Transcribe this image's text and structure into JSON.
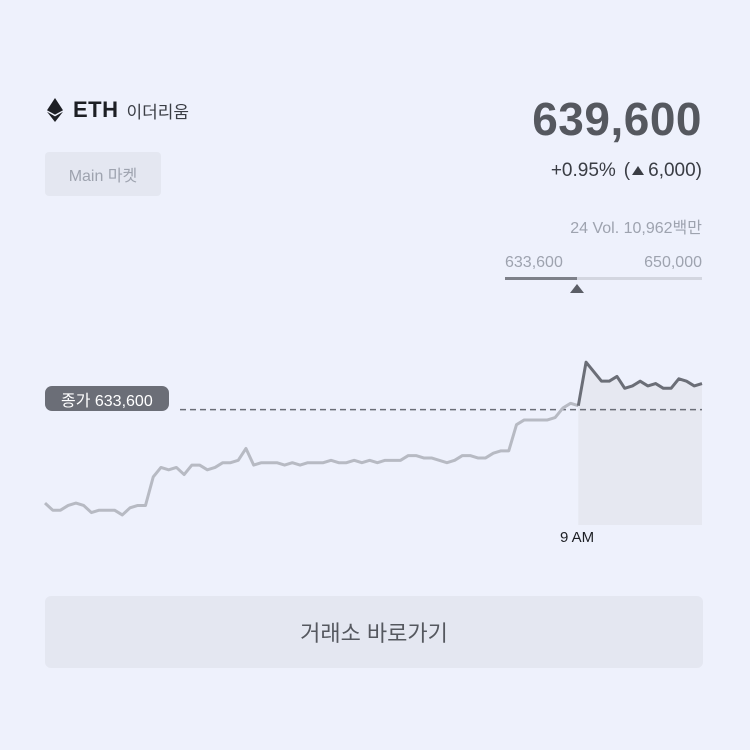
{
  "coin": {
    "symbol": "ETH",
    "name": "이더리움",
    "icon": "ethereum-icon"
  },
  "market_button": {
    "label": "Main 마켓"
  },
  "price": {
    "current": "639,600",
    "change_rate": "+0.95%",
    "change_open": "(",
    "change_amount": "6,000)",
    "direction_icon": "triangle-up-icon"
  },
  "volume": {
    "label": "24 Vol. 10,962백만"
  },
  "range": {
    "low": "633,600",
    "high": "650,000",
    "marker_value": 639600
  },
  "close_label": "종가 633,600",
  "time_label": "9 AM",
  "exchange_button": {
    "label": "거래소 바로가기"
  },
  "colors": {
    "background": "#eef1fc",
    "line_before": "#b7bac3",
    "line_after": "#6b6e77",
    "area_fill": "#e6e8f1",
    "dashed": "#6b6e77"
  },
  "chart_data": {
    "type": "line",
    "reference_close": 633600,
    "split_label": "9 AM",
    "series": [
      {
        "values": [
          627700,
          627250,
          627250,
          627550,
          627700,
          627550,
          627100,
          627250,
          627250,
          627250,
          626950,
          627400,
          627550,
          627550,
          629350,
          629950,
          629800,
          629950,
          629500,
          630100,
          630100,
          629800,
          629950,
          630250,
          630250,
          630400,
          631150,
          630100,
          630250,
          630250,
          630250,
          630100,
          630250,
          630100,
          630250,
          630250,
          630250,
          630400,
          630250,
          630250,
          630400,
          630250,
          630400,
          630250,
          630400,
          630400,
          630400,
          630700,
          630700,
          630550,
          630550,
          630400,
          630250,
          630400,
          630700,
          630700,
          630550,
          630550,
          630850,
          631000,
          631000,
          632650,
          632950,
          632950,
          632950,
          632950,
          633100,
          633700,
          634000,
          633850
        ]
      },
      {
        "values": [
          633850,
          636600,
          636000,
          635400,
          635400,
          635700,
          634950,
          635100,
          635400,
          635100,
          635250,
          634950,
          634950,
          635550,
          635400,
          635100,
          635250
        ]
      }
    ]
  }
}
